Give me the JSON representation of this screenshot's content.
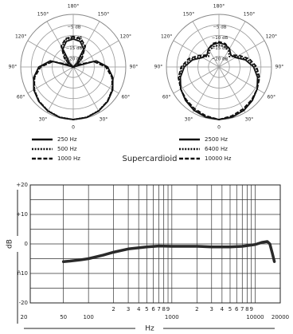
{
  "caption": "Supercardioid",
  "chart_data": [
    {
      "type": "polar",
      "rlim": [
        -25,
        0
      ],
      "rticks": [
        {
          "value": -20,
          "label": "−20 dB"
        },
        {
          "value": -15,
          "label": "−15 dB"
        },
        {
          "value": -10,
          "label": "−10 dB"
        },
        {
          "value": -5,
          "label": "−5 dB"
        }
      ],
      "thetaticks": [
        {
          "value": 180,
          "label": "180°"
        },
        {
          "value": 150,
          "label": "150°"
        },
        {
          "value": 210,
          "label": "150°"
        },
        {
          "value": 120,
          "label": "120°"
        },
        {
          "value": 240,
          "label": "120°"
        },
        {
          "value": 90,
          "label": "90°"
        },
        {
          "value": 270,
          "label": "90°"
        },
        {
          "value": 60,
          "label": "60°"
        },
        {
          "value": 300,
          "label": "60°"
        },
        {
          "value": 30,
          "label": "30°"
        },
        {
          "value": 330,
          "label": "30°"
        },
        0
      ],
      "angles": [
        0,
        15,
        30,
        45,
        60,
        75,
        90,
        105,
        120,
        135,
        150,
        165,
        180,
        195,
        210,
        225,
        240,
        255,
        270,
        285,
        300,
        315,
        330,
        345
      ],
      "series": [
        {
          "name": "250 Hz",
          "color": "#111",
          "dash": "solid",
          "values": [
            0,
            -0.2,
            -0.8,
            -1.8,
            -3.3,
            -5.5,
            -8.6,
            -13.7,
            -25,
            -22.5,
            -15.1,
            -12.4,
            -11.7,
            -12.4,
            -15.1,
            -22.5,
            -25,
            -13.7,
            -8.6,
            -5.5,
            -3.3,
            -1.8,
            -0.8,
            -0.2
          ]
        },
        {
          "name": "500 Hz",
          "color": "#111",
          "dash": "dotted",
          "values": [
            0,
            -0.3,
            -1,
            -2,
            -3.6,
            -5.8,
            -9,
            -14.5,
            -24,
            -20,
            -14,
            -11.5,
            -11,
            -11.5,
            -14,
            -20,
            -24,
            -14.5,
            -9,
            -5.8,
            -3.6,
            -2,
            -1,
            -0.3
          ]
        },
        {
          "name": "1000 Hz",
          "color": "#111",
          "dash": "dashed",
          "values": [
            0,
            -0.2,
            -0.9,
            -2,
            -3.5,
            -6,
            -9.5,
            -15,
            -23,
            -19,
            -13.5,
            -11,
            -10.5,
            -11,
            -13.5,
            -19,
            -23,
            -15,
            -9.5,
            -6,
            -3.5,
            -2,
            -0.9,
            -0.2
          ]
        }
      ]
    },
    {
      "type": "polar",
      "rlim": [
        -25,
        0
      ],
      "rticks": [
        {
          "value": -20,
          "label": "−20 dB"
        },
        {
          "value": -15,
          "label": "−15 dB"
        },
        {
          "value": -10,
          "label": "−10 dB"
        },
        {
          "value": -5,
          "label": "−5 dB"
        }
      ],
      "thetaticks": [
        {
          "value": 180,
          "label": "180°"
        },
        {
          "value": 150,
          "label": "150°"
        },
        {
          "value": 210,
          "label": "150°"
        },
        {
          "value": 120,
          "label": "120°"
        },
        {
          "value": 240,
          "label": "120°"
        },
        {
          "value": 90,
          "label": "90°"
        },
        {
          "value": 270,
          "label": "90°"
        },
        {
          "value": 60,
          "label": "60°"
        },
        {
          "value": 300,
          "label": "60°"
        },
        {
          "value": 30,
          "label": "30°"
        },
        {
          "value": 330,
          "label": "30°"
        },
        0
      ],
      "angles": [
        0,
        15,
        30,
        45,
        60,
        75,
        90,
        105,
        120,
        135,
        150,
        165,
        180,
        195,
        210,
        225,
        240,
        255,
        270,
        285,
        300,
        315,
        330,
        345
      ],
      "series": [
        {
          "name": "2500 Hz",
          "color": "#111",
          "dash": "solid",
          "values": [
            0,
            -0.4,
            -1.2,
            -2.5,
            -4,
            -6,
            -8.5,
            -12,
            -16,
            -17,
            -15,
            -14,
            -13.5,
            -14,
            -15,
            -17,
            -16,
            -12,
            -8.5,
            -6,
            -4,
            -2.5,
            -1.2,
            -0.4
          ]
        },
        {
          "name": "6400 Hz",
          "color": "#111",
          "dash": "dotted",
          "values": [
            0,
            -0.5,
            -1.5,
            -2.8,
            -4,
            -5.5,
            -7.5,
            -11,
            -15,
            -18,
            -16,
            -15,
            -14.5,
            -15,
            -16,
            -18,
            -15,
            -11,
            -7.5,
            -5.5,
            -4,
            -2.8,
            -1.5,
            -0.5
          ]
        },
        {
          "name": "10000 Hz",
          "color": "#111",
          "dash": "dashed",
          "values": [
            0,
            -1,
            -2,
            -3,
            -4,
            -5,
            -7,
            -10,
            -14,
            -17,
            -15,
            -13.5,
            -13,
            -13.5,
            -15,
            -17,
            -14,
            -10,
            -7,
            -5,
            -4,
            -3,
            -2,
            -1
          ]
        }
      ]
    },
    {
      "type": "line",
      "xlabel": "Hz",
      "ylabel": "dB",
      "xscale": "log",
      "xlim": [
        20,
        20000
      ],
      "ylim": [
        -20,
        20
      ],
      "xticks": [
        20,
        50,
        100,
        {
          "value": 200,
          "label": "2"
        },
        {
          "value": 300,
          "label": "3"
        },
        {
          "value": 400,
          "label": "4"
        },
        {
          "value": 500,
          "label": "5"
        },
        {
          "value": 600,
          "label": "6"
        },
        {
          "value": 700,
          "label": "7"
        },
        {
          "value": 800,
          "label": "8"
        },
        {
          "value": 900,
          "label": "9"
        },
        1000,
        {
          "value": 2000,
          "label": "2"
        },
        {
          "value": 3000,
          "label": "3"
        },
        {
          "value": 4000,
          "label": "4"
        },
        {
          "value": 5000,
          "label": "5"
        },
        {
          "value": 6000,
          "label": "6"
        },
        {
          "value": 7000,
          "label": "7"
        },
        {
          "value": 8000,
          "label": "8"
        },
        {
          "value": 9000,
          "label": "9"
        },
        10000,
        20000
      ],
      "yticks": [
        {
          "value": 20,
          "label": "+20"
        },
        {
          "value": 10,
          "label": "+10"
        },
        0,
        {
          "value": -10,
          "label": "ñ10"
        },
        -20
      ],
      "yminor": [
        15,
        5,
        -5,
        -15
      ],
      "x": [
        50,
        60,
        80,
        100,
        150,
        200,
        300,
        500,
        700,
        1000,
        2000,
        3000,
        5000,
        7000,
        10000,
        12000,
        14000,
        15000,
        16000,
        17000
      ],
      "series": [
        {
          "color": "#2a2a2a",
          "values": [
            -6,
            -5.8,
            -5.4,
            -5,
            -3.8,
            -2.8,
            -1.7,
            -1,
            -0.7,
            -0.8,
            -0.8,
            -1,
            -1,
            -0.8,
            -0.2,
            0.5,
            0.8,
            0,
            -3,
            -6
          ]
        }
      ]
    }
  ]
}
